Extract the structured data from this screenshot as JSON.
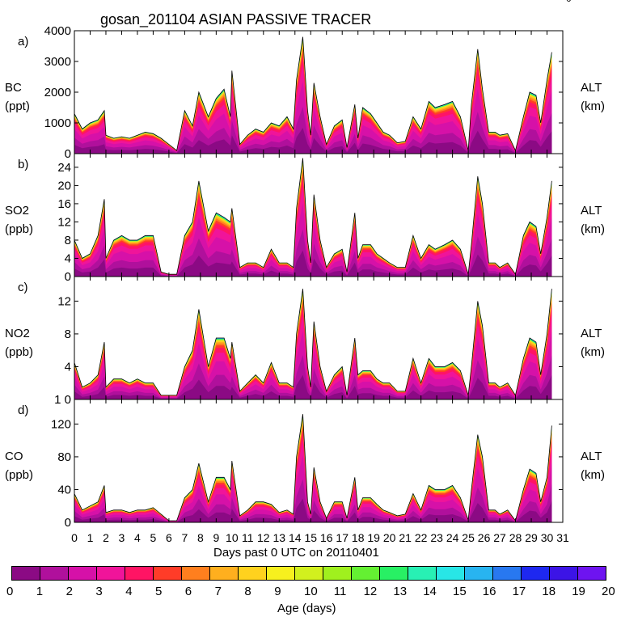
{
  "title": "gosan_201104 ASIAN PASSIVE TRACER",
  "corner_mark": "0",
  "xlabel": "Days past 0 UTC on 20110401",
  "colorbar": {
    "label": "Age (days)",
    "ticks": [
      "0",
      "1",
      "2",
      "3",
      "4",
      "5",
      "6",
      "7",
      "8",
      "9",
      "10",
      "11",
      "12",
      "13",
      "14",
      "15",
      "16",
      "17",
      "18",
      "19",
      "20"
    ],
    "colors": [
      "#8b0a84",
      "#b0109c",
      "#d611a8",
      "#f0149a",
      "#ff1464",
      "#ff3c28",
      "#ff7f1e",
      "#ffaf1e",
      "#ffd21e",
      "#f7f01e",
      "#d2f01e",
      "#a0f01e",
      "#64f032",
      "#28f064",
      "#28f0b4",
      "#28e6e6",
      "#28b4f0",
      "#2878f0",
      "#1e28f0",
      "#3c14e6",
      "#6e14f0"
    ]
  },
  "x_ticks": [
    "0",
    "1",
    "2",
    "3",
    "4",
    "5",
    "6",
    "7",
    "8",
    "9",
    "10",
    "11",
    "12",
    "13",
    "14",
    "15",
    "16",
    "17",
    "18",
    "19",
    "20",
    "21",
    "22",
    "23",
    "24",
    "25",
    "26",
    "27",
    "28",
    "29",
    "30",
    "31"
  ],
  "chart_data": [
    {
      "type": "area",
      "panel": "a)",
      "species": "BC",
      "unit": "(ppt)",
      "right_label": "ALT",
      "right_unit": "(km)",
      "yticks": [
        "4000",
        "3000",
        "2000",
        "1000",
        "0"
      ],
      "ylim": [
        0,
        4000
      ],
      "x": [
        0,
        0.5,
        1,
        1.5,
        1.9,
        2,
        2.5,
        3,
        3.5,
        4,
        4.5,
        5,
        5.5,
        6,
        6.5,
        7,
        7.5,
        7.9,
        8.5,
        9,
        9.5,
        9.9,
        10,
        10.5,
        11,
        11.5,
        12,
        12.5,
        13,
        13.5,
        13.9,
        14.1,
        14.5,
        14.8,
        15,
        15.2,
        15.6,
        16,
        16.5,
        17,
        17.3,
        17.8,
        18,
        18.3,
        18.8,
        19.2,
        19.6,
        20,
        20.5,
        21,
        21.5,
        22,
        22.5,
        22.9,
        23.5,
        24,
        24.5,
        25,
        25.2,
        25.6,
        25.9,
        26.3,
        26.7,
        27,
        27.5,
        28,
        28.5,
        28.9,
        29.3,
        29.6,
        30,
        30.3
      ],
      "values": [
        1300,
        800,
        1000,
        1100,
        1400,
        600,
        500,
        550,
        500,
        600,
        700,
        650,
        500,
        300,
        100,
        1400,
        900,
        2000,
        1200,
        1800,
        2100,
        1200,
        2700,
        300,
        600,
        800,
        700,
        1000,
        900,
        1200,
        800,
        2400,
        3800,
        1400,
        600,
        2300,
        1200,
        300,
        900,
        1100,
        200,
        1600,
        500,
        1500,
        1300,
        1000,
        700,
        600,
        350,
        400,
        1200,
        800,
        1700,
        1500,
        1600,
        1700,
        1200,
        100,
        1600,
        3400,
        2100,
        700,
        700,
        600,
        650,
        100,
        1200,
        2000,
        1900,
        1000,
        2400,
        3300
      ]
    },
    {
      "type": "area",
      "panel": "b)",
      "species": "SO2",
      "unit": "(ppb)",
      "right_label": "ALT",
      "right_unit": "(km)",
      "yticks": [
        "24",
        "20",
        "16",
        "12",
        "8",
        "4",
        "0"
      ],
      "ylim": [
        0,
        27
      ],
      "x": [
        0,
        0.5,
        1,
        1.5,
        1.9,
        2,
        2.5,
        3,
        3.5,
        4,
        4.5,
        5,
        5.5,
        6,
        6.5,
        7,
        7.5,
        7.9,
        8.5,
        9,
        9.5,
        9.9,
        10,
        10.5,
        11,
        11.5,
        12,
        12.5,
        13,
        13.5,
        13.9,
        14.1,
        14.5,
        14.8,
        15,
        15.2,
        15.6,
        16,
        16.5,
        17,
        17.3,
        17.8,
        18,
        18.3,
        18.8,
        19.2,
        19.6,
        20,
        20.5,
        21,
        21.5,
        22,
        22.5,
        22.9,
        23.5,
        24,
        24.5,
        25,
        25.2,
        25.6,
        25.9,
        26.3,
        26.7,
        27,
        27.5,
        28,
        28.5,
        28.9,
        29.3,
        29.6,
        30,
        30.3
      ],
      "values": [
        8,
        4,
        5,
        9,
        17,
        4,
        8,
        9,
        8,
        8,
        9,
        9,
        1,
        0.5,
        0.5,
        9,
        12,
        21,
        10,
        14,
        13,
        12,
        15,
        2,
        3,
        3,
        2,
        6,
        3,
        3,
        2,
        15,
        26,
        8,
        3,
        18,
        8,
        2,
        5,
        6,
        1,
        14,
        4,
        7,
        7,
        5,
        4,
        3,
        2,
        2,
        9,
        4,
        7,
        6,
        7,
        8,
        6,
        0.5,
        7,
        22,
        16,
        3,
        3,
        2,
        3,
        0.5,
        9,
        12,
        11,
        5,
        13,
        21
      ]
    },
    {
      "type": "area",
      "panel": "c)",
      "species": "NO2",
      "unit": "(ppb)",
      "right_label": "ALT",
      "right_unit": "(km)",
      "yticks": [
        "12",
        "8",
        "4",
        "1 0"
      ],
      "ylim": [
        0,
        15
      ],
      "x": [
        0,
        0.5,
        1,
        1.5,
        1.9,
        2,
        2.5,
        3,
        3.5,
        4,
        4.5,
        5,
        5.5,
        6,
        6.5,
        7,
        7.5,
        7.9,
        8.5,
        9,
        9.5,
        9.9,
        10,
        10.5,
        11,
        11.5,
        12,
        12.5,
        13,
        13.5,
        13.9,
        14.1,
        14.5,
        14.8,
        15,
        15.2,
        15.6,
        16,
        16.5,
        17,
        17.3,
        17.8,
        18,
        18.3,
        18.8,
        19.2,
        19.6,
        20,
        20.5,
        21,
        21.5,
        22,
        22.5,
        22.9,
        23.5,
        24,
        24.5,
        25,
        25.2,
        25.6,
        25.9,
        26.3,
        26.7,
        27,
        27.5,
        28,
        28.5,
        28.9,
        29.3,
        29.6,
        30,
        30.3
      ],
      "values": [
        4.5,
        1.5,
        2,
        3,
        7,
        1.5,
        2.5,
        2.5,
        2,
        2.5,
        2,
        2,
        0.5,
        0.5,
        0.5,
        4,
        6,
        11,
        4,
        7.5,
        7.5,
        5,
        7,
        1,
        2,
        3,
        2,
        4.5,
        2,
        2,
        1.5,
        8,
        13.5,
        4,
        1.5,
        9.5,
        4,
        1,
        3,
        4,
        0.5,
        7.5,
        3,
        3.5,
        3.5,
        2.5,
        2,
        2,
        1,
        1,
        5,
        2,
        5,
        4,
        4,
        4.5,
        3.5,
        0.5,
        4,
        12,
        9,
        2,
        2,
        1.5,
        2,
        0.5,
        5,
        7.5,
        7,
        3,
        8,
        13.5
      ]
    },
    {
      "type": "area",
      "panel": "d)",
      "species": "CO",
      "unit": "(ppb)",
      "right_label": "ALT",
      "right_unit": "(km)",
      "yticks": [
        "120",
        "80",
        "40",
        "0"
      ],
      "ylim": [
        0,
        150
      ],
      "x": [
        0,
        0.5,
        1,
        1.5,
        1.9,
        2,
        2.5,
        3,
        3.5,
        4,
        4.5,
        5,
        5.5,
        6,
        6.5,
        7,
        7.5,
        7.9,
        8.5,
        9,
        9.5,
        9.9,
        10,
        10.5,
        11,
        11.5,
        12,
        12.5,
        13,
        13.5,
        13.9,
        14.1,
        14.5,
        14.8,
        15,
        15.2,
        15.6,
        16,
        16.5,
        17,
        17.3,
        17.8,
        18,
        18.3,
        18.8,
        19.2,
        19.6,
        20,
        20.5,
        21,
        21.5,
        22,
        22.5,
        22.9,
        23.5,
        24,
        24.5,
        25,
        25.2,
        25.6,
        25.9,
        26.3,
        26.7,
        27,
        27.5,
        28,
        28.5,
        28.9,
        29.3,
        29.6,
        30,
        30.3
      ],
      "values": [
        35,
        15,
        20,
        25,
        45,
        12,
        15,
        15,
        12,
        15,
        15,
        18,
        10,
        2,
        2,
        30,
        40,
        72,
        25,
        55,
        55,
        40,
        75,
        8,
        15,
        25,
        25,
        22,
        12,
        15,
        10,
        80,
        132,
        25,
        10,
        67,
        25,
        5,
        25,
        25,
        5,
        55,
        15,
        30,
        30,
        22,
        15,
        12,
        8,
        10,
        35,
        15,
        45,
        40,
        40,
        45,
        30,
        3,
        40,
        107,
        80,
        15,
        15,
        10,
        15,
        2,
        40,
        65,
        60,
        25,
        55,
        118
      ]
    }
  ]
}
